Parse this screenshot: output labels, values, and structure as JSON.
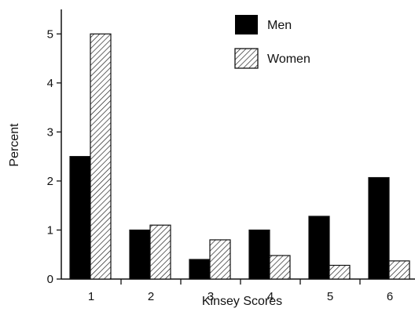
{
  "chart_data": {
    "type": "bar",
    "xlabel": "Kinsey Scores",
    "ylabel": "Percent",
    "categories": [
      "1",
      "2",
      "3",
      "4",
      "5",
      "6"
    ],
    "series": [
      {
        "name": "Men",
        "values": [
          2.5,
          1.0,
          0.4,
          1.0,
          1.28,
          2.07
        ],
        "color": "#000000",
        "pattern": "solid"
      },
      {
        "name": "Women",
        "values": [
          5.0,
          1.1,
          0.8,
          0.48,
          0.28,
          0.37
        ],
        "color": "#ffffff",
        "pattern": "diagonal-hatch"
      }
    ],
    "ylim": [
      0,
      5.5
    ],
    "yticks": [
      0,
      1,
      2,
      3,
      4,
      5
    ],
    "grid": false,
    "legend_position": "top-right"
  }
}
